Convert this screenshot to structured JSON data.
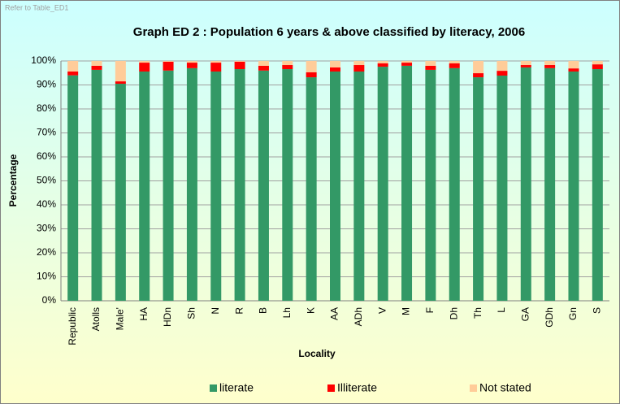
{
  "chart_data": {
    "type": "stacked-bar",
    "note": "Refer to Table_ED1",
    "title": "Graph ED 2 : Population 6 years & above classified by literacy, 2006",
    "x_label": "Locality",
    "y_label": "Percentage",
    "categories": [
      "Republic",
      "Atolls",
      "Male'",
      "HA",
      "HDn",
      "Sh",
      "N",
      "R",
      "B",
      "Lh",
      "K",
      "AA",
      "ADh",
      "V",
      "M",
      "F",
      "Dh",
      "Th",
      "L",
      "GA",
      "GDh",
      "Gn",
      "S"
    ],
    "series": [
      {
        "name": "literate",
        "color": "#339966",
        "values": [
          94,
          96.3,
          90.5,
          95.6,
          96,
          97,
          95.6,
          96.6,
          96,
          96.6,
          93.2,
          95.6,
          95.6,
          97.6,
          98,
          96.3,
          97,
          93.2,
          93.9,
          97.3,
          97,
          95.6,
          96.6
        ]
      },
      {
        "name": "Illiterate",
        "color": "#ff0000",
        "values": [
          1.6,
          1.7,
          1,
          3.7,
          3.7,
          2.3,
          3.7,
          3.1,
          2,
          1.7,
          2.1,
          1.7,
          2.7,
          1.4,
          1.3,
          1.7,
          2,
          1.7,
          2,
          1,
          1.3,
          1.3,
          2
        ]
      },
      {
        "name": "Not stated",
        "color": "#ffcc99",
        "values": [
          4.4,
          2,
          8.5,
          0.7,
          0.3,
          0.7,
          0.7,
          0.3,
          2,
          1.7,
          4.7,
          2.7,
          1.7,
          1,
          0.7,
          2,
          1,
          5.1,
          4.1,
          1.7,
          1.7,
          3.1,
          1.4
        ]
      }
    ],
    "ylim": [
      0,
      100
    ],
    "yticks": [
      {
        "value": 0,
        "label": "0%"
      },
      {
        "value": 10,
        "label": "10%"
      },
      {
        "value": 20,
        "label": "20%"
      },
      {
        "value": 30,
        "label": "30%"
      },
      {
        "value": 40,
        "label": "40%"
      },
      {
        "value": 50,
        "label": "50%"
      },
      {
        "value": 60,
        "label": "60%"
      },
      {
        "value": 70,
        "label": "70%"
      },
      {
        "value": 80,
        "label": "80%"
      },
      {
        "value": 90,
        "label": "90%"
      },
      {
        "value": 100,
        "label": "100%"
      }
    ],
    "grid": true,
    "legend": "bottom"
  }
}
